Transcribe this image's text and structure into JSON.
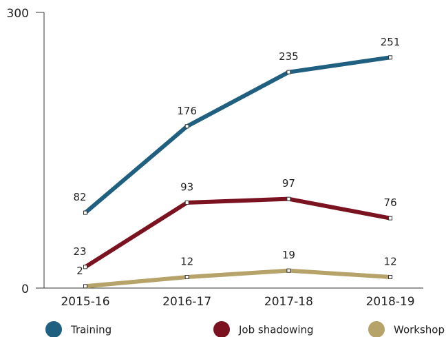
{
  "chart_data": {
    "type": "line",
    "categories": [
      "2015-16",
      "2016-17",
      "2017-18",
      "2018-19"
    ],
    "series": [
      {
        "name": "Training",
        "color": "#1f5f80",
        "values": [
          82,
          176,
          235,
          251
        ]
      },
      {
        "name": "Job shadowing",
        "color": "#7b1220",
        "values": [
          23,
          93,
          97,
          76
        ]
      },
      {
        "name": "Workshop",
        "color": "#b5a36a",
        "values": [
          2,
          12,
          19,
          12
        ]
      }
    ],
    "ylim": [
      0,
      300
    ],
    "yticks": [
      0,
      300
    ],
    "legend": "bottom"
  }
}
